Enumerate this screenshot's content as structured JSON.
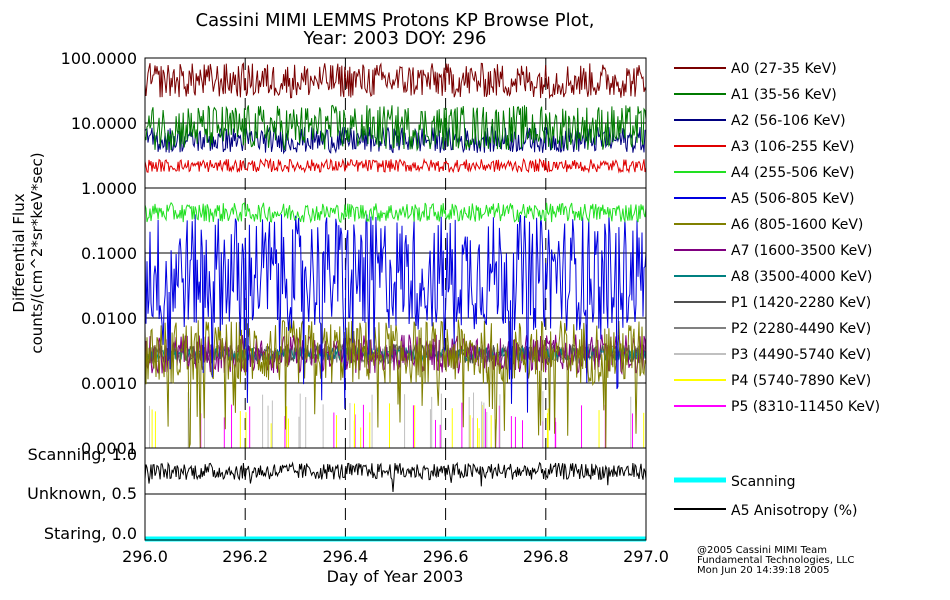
{
  "chart_data": {
    "type": "line",
    "title_lines": [
      "Cassini MIMI LEMMS Protons KP Browse Plot,",
      "Year: 2003 DOY: 296"
    ],
    "xlabel": "Day of Year 2003",
    "xlim": [
      296.0,
      297.0
    ],
    "x_ticks": [
      "296.0",
      "296.2",
      "296.4",
      "296.6",
      "296.8",
      "297.0"
    ],
    "upper_panel": {
      "ylabel_lines": [
        "Differential Flux",
        "counts/(cm^2*sr*keV*sec)"
      ],
      "scale": "log",
      "ylim": [
        0.0001,
        100
      ],
      "y_ticks": [
        "100.0000",
        "10.0000",
        "1.0000",
        "0.1000",
        "0.0100",
        "0.0010",
        "0.0001"
      ],
      "grid": true,
      "series": [
        {
          "name": "A0 (27-35 KeV)",
          "color": "#7a0000",
          "typical_value": 45,
          "spread": 0.27
        },
        {
          "name": "A1 (35-56 KeV)",
          "color": "#007a00",
          "typical_value": 8.5,
          "spread": 0.35
        },
        {
          "name": "A2 (56-106 KeV)",
          "color": "#000080",
          "typical_value": 5.5,
          "spread": 0.2
        },
        {
          "name": "A3 (106-255 KeV)",
          "color": "#e00000",
          "typical_value": 2.2,
          "spread": 0.1
        },
        {
          "name": "A4 (255-506 KeV)",
          "color": "#22e022",
          "typical_value": 0.42,
          "spread": 0.15
        },
        {
          "name": "A5 (506-805 KeV)",
          "color": "#0000e0",
          "typical_value": 0.05,
          "spread": 0.9
        },
        {
          "name": "A6 (805-1600 KeV)",
          "color": "#808000",
          "typical_value": 0.003,
          "spread": 0.5
        },
        {
          "name": "A7 (1600-3500 KeV)",
          "color": "#800080",
          "typical_value": 0.0028,
          "spread": 0.3
        },
        {
          "name": "A8 (3500-4000 KeV)",
          "color": "#008080",
          "typical_value": 0.0028,
          "spread": 0.1
        },
        {
          "name": "P1 (1420-2280 KeV)",
          "color": "#505050",
          "typical_value": 0.0028,
          "spread": 0.15
        },
        {
          "name": "P2 (2280-4490 KeV)",
          "color": "#808080",
          "typical_value": 0.0028,
          "spread": 0.15
        },
        {
          "name": "P3 (4490-5740 KeV)",
          "color": "#c0c0c0",
          "typical_value": 0.0003,
          "spread": 0.2
        },
        {
          "name": "P4 (5740-7890 KeV)",
          "color": "#ffff00",
          "typical_value": 0.0002,
          "spread": 0.2
        },
        {
          "name": "P5 (8310-11450 KeV)",
          "color": "#ff00ff",
          "typical_value": 0.0002,
          "spread": 0.1
        }
      ]
    },
    "lower_panel": {
      "y_ticks": [
        "Scanning, 1.0",
        "Unknown, 0.5",
        "Staring, 0.0"
      ],
      "ylim": [
        0.0,
        1.0
      ],
      "series": [
        {
          "name": "Scanning",
          "color": "#00ffff",
          "value": 0.0
        },
        {
          "name": "A5 Anisotropy (%)",
          "color": "#000000",
          "typical_value": 0.77,
          "spread": 0.1
        }
      ]
    },
    "legend_position": "right"
  },
  "credits": [
    "@2005 Cassini MIMI Team",
    "Fundamental Technologies, LLC",
    "Mon Jun 20 14:39:18 2005"
  ]
}
